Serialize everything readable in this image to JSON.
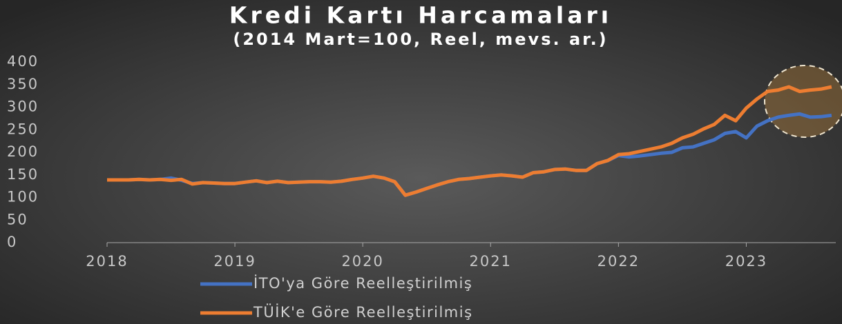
{
  "chart_data": {
    "type": "line",
    "title": "Kredi Kartı Harcamaları",
    "subtitle": "(2014 Mart=100, Reel, mevs. ar.)",
    "x": [
      2018,
      2018.083,
      2018.167,
      2018.25,
      2018.333,
      2018.417,
      2018.5,
      2018.583,
      2018.667,
      2018.75,
      2018.833,
      2018.917,
      2019,
      2019.083,
      2019.167,
      2019.25,
      2019.333,
      2019.417,
      2019.5,
      2019.583,
      2019.667,
      2019.75,
      2019.833,
      2019.917,
      2020,
      2020.083,
      2020.167,
      2020.25,
      2020.333,
      2020.417,
      2020.5,
      2020.583,
      2020.667,
      2020.75,
      2020.833,
      2020.917,
      2021,
      2021.083,
      2021.167,
      2021.25,
      2021.333,
      2021.417,
      2021.5,
      2021.583,
      2021.667,
      2021.75,
      2021.833,
      2021.917,
      2022,
      2022.083,
      2022.167,
      2022.25,
      2022.333,
      2022.417,
      2022.5,
      2022.583,
      2022.667,
      2022.75,
      2022.833,
      2022.917,
      2023,
      2023.083,
      2023.167,
      2023.25,
      2023.333,
      2023.417,
      2023.5,
      2023.583,
      2023.667
    ],
    "series": [
      {
        "name": "İTO'ya Göre Reelleştirilmiş",
        "color": "#4472c4",
        "values": [
          139,
          139,
          139,
          140,
          139,
          140,
          143,
          138,
          131,
          133,
          132,
          131,
          131,
          134,
          137,
          133,
          136,
          133,
          134,
          135,
          135,
          134,
          136,
          140,
          143,
          147,
          143,
          135,
          105,
          112,
          120,
          128,
          135,
          140,
          142,
          145,
          148,
          150,
          148,
          145,
          155,
          157,
          162,
          163,
          160,
          160,
          175,
          182,
          193,
          190,
          192,
          195,
          198,
          200,
          210,
          212,
          220,
          228,
          242,
          246,
          232,
          258,
          270,
          278,
          282,
          285,
          278,
          279,
          282
        ]
      },
      {
        "name": "TÜİK'e Göre Reelleştirilmiş",
        "color": "#ed7d31",
        "values": [
          139,
          139,
          139,
          140,
          139,
          140,
          138,
          140,
          130,
          133,
          132,
          131,
          131,
          134,
          137,
          133,
          136,
          133,
          134,
          135,
          135,
          134,
          136,
          140,
          143,
          147,
          143,
          135,
          105,
          112,
          120,
          128,
          135,
          140,
          142,
          145,
          148,
          150,
          148,
          145,
          155,
          157,
          162,
          163,
          160,
          160,
          175,
          182,
          195,
          197,
          202,
          207,
          212,
          220,
          232,
          240,
          252,
          262,
          282,
          270,
          298,
          318,
          335,
          338,
          345,
          335,
          338,
          340,
          345
        ]
      }
    ],
    "xlim": [
      2018,
      2023.7
    ],
    "xticks": [
      2018,
      2019,
      2020,
      2021,
      2022,
      2023
    ],
    "ylim": [
      0,
      400
    ],
    "yticks": [
      0,
      50,
      100,
      150,
      200,
      250,
      300,
      350,
      400
    ],
    "grid": false,
    "legend": "bottom"
  }
}
